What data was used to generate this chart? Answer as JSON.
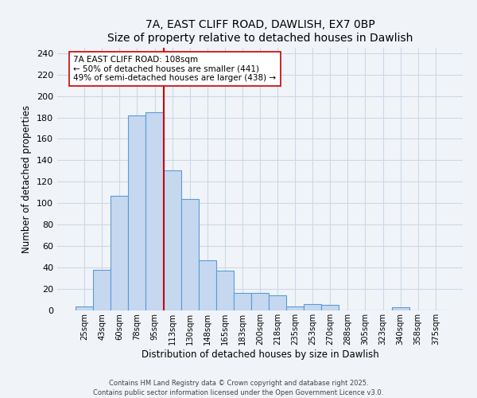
{
  "title": "7A, EAST CLIFF ROAD, DAWLISH, EX7 0BP",
  "subtitle": "Size of property relative to detached houses in Dawlish",
  "xlabel": "Distribution of detached houses by size in Dawlish",
  "ylabel": "Number of detached properties",
  "bar_labels": [
    "25sqm",
    "43sqm",
    "60sqm",
    "78sqm",
    "95sqm",
    "113sqm",
    "130sqm",
    "148sqm",
    "165sqm",
    "183sqm",
    "200sqm",
    "218sqm",
    "235sqm",
    "253sqm",
    "270sqm",
    "288sqm",
    "305sqm",
    "323sqm",
    "340sqm",
    "358sqm",
    "375sqm"
  ],
  "bar_heights": [
    4,
    38,
    107,
    182,
    185,
    131,
    104,
    47,
    37,
    16,
    16,
    14,
    4,
    6,
    5,
    0,
    0,
    0,
    3,
    0,
    0
  ],
  "bar_color": "#c5d8f0",
  "bar_edge_color": "#5b9bd5",
  "ylim": [
    0,
    245
  ],
  "yticks": [
    0,
    20,
    40,
    60,
    80,
    100,
    120,
    140,
    160,
    180,
    200,
    220,
    240
  ],
  "vline_x": 4.5,
  "vline_color": "#cc0000",
  "annotation_title": "7A EAST CLIFF ROAD: 108sqm",
  "annotation_line1": "← 50% of detached houses are smaller (441)",
  "annotation_line2": "49% of semi-detached houses are larger (438) →",
  "footer1": "Contains HM Land Registry data © Crown copyright and database right 2025.",
  "footer2": "Contains public sector information licensed under the Open Government Licence v3.0.",
  "bg_color": "#f0f4f8",
  "grid_color": "#ccd8e8"
}
